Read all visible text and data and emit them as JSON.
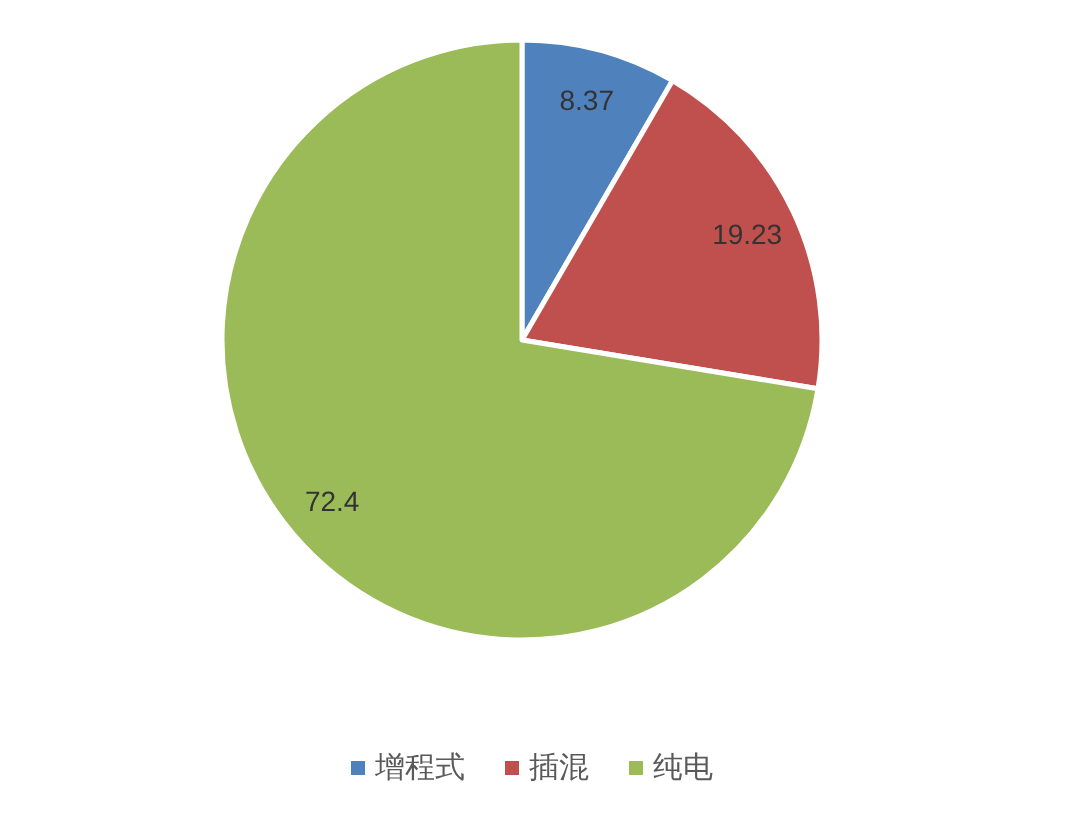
{
  "chart_data": {
    "type": "pie",
    "categories": [
      "增程式",
      "插混",
      "纯电"
    ],
    "values": [
      8.37,
      19.23,
      72.4
    ],
    "colors": [
      "#4f81bd",
      "#c0504d",
      "#9bbb59"
    ],
    "data_labels": true,
    "legend": "bottom"
  }
}
